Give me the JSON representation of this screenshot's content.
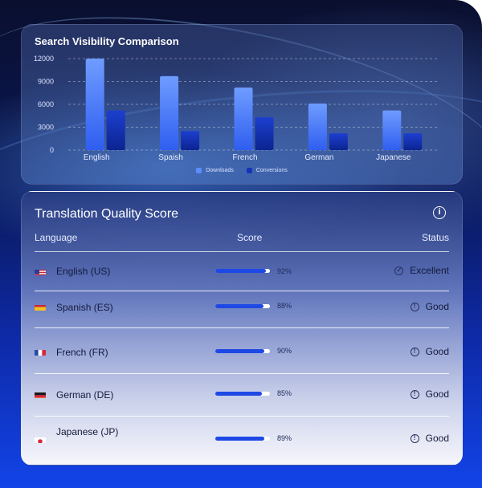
{
  "chart_data": {
    "type": "bar",
    "title": "Search Visibility Comparison",
    "categories": [
      "English",
      "Spaish",
      "French",
      "German",
      "Japanese"
    ],
    "series": [
      {
        "name": "Downloads",
        "values": [
          12000,
          9700,
          8200,
          6100,
          5200
        ],
        "color": "#5b8dff"
      },
      {
        "name": "Conversions",
        "values": [
          5200,
          2500,
          4300,
          2200,
          2200
        ],
        "color": "#1434b8"
      }
    ],
    "yticks": [
      "12000",
      "9000",
      "6000",
      "3000",
      "0"
    ],
    "ylim": [
      0,
      12000
    ],
    "legend_position": "bottom-center",
    "grid": true
  },
  "table": {
    "title": "Translation Quality Score",
    "info_icon": "info-icon",
    "headers": {
      "language": "Language",
      "score": "Score",
      "status": "Status"
    },
    "rows": [
      {
        "flag": "us",
        "language": "English (US)",
        "score": 92,
        "score_label": "92%",
        "status": "Excellent",
        "status_icon": "check-circle-icon"
      },
      {
        "flag": "es",
        "language": "Spanish (ES)",
        "score": 88,
        "score_label": "88%",
        "status": "Good",
        "status_icon": "alert-circle-icon"
      },
      {
        "flag": "fr",
        "language": "French (FR)",
        "score": 90,
        "score_label": "90%",
        "status": "Good",
        "status_icon": "alert-circle-icon"
      },
      {
        "flag": "de",
        "language": "German (DE)",
        "score": 85,
        "score_label": "85%",
        "status": "Good",
        "status_icon": "alert-circle-icon"
      },
      {
        "flag": "jp",
        "language": "Japanese (JP)",
        "score": 89,
        "score_label": "89%",
        "status": "Good",
        "status_icon": "alert-circle-icon"
      }
    ]
  },
  "colors": {
    "bar_fill": "#1e48e6",
    "bar_track": "#ffffff"
  }
}
